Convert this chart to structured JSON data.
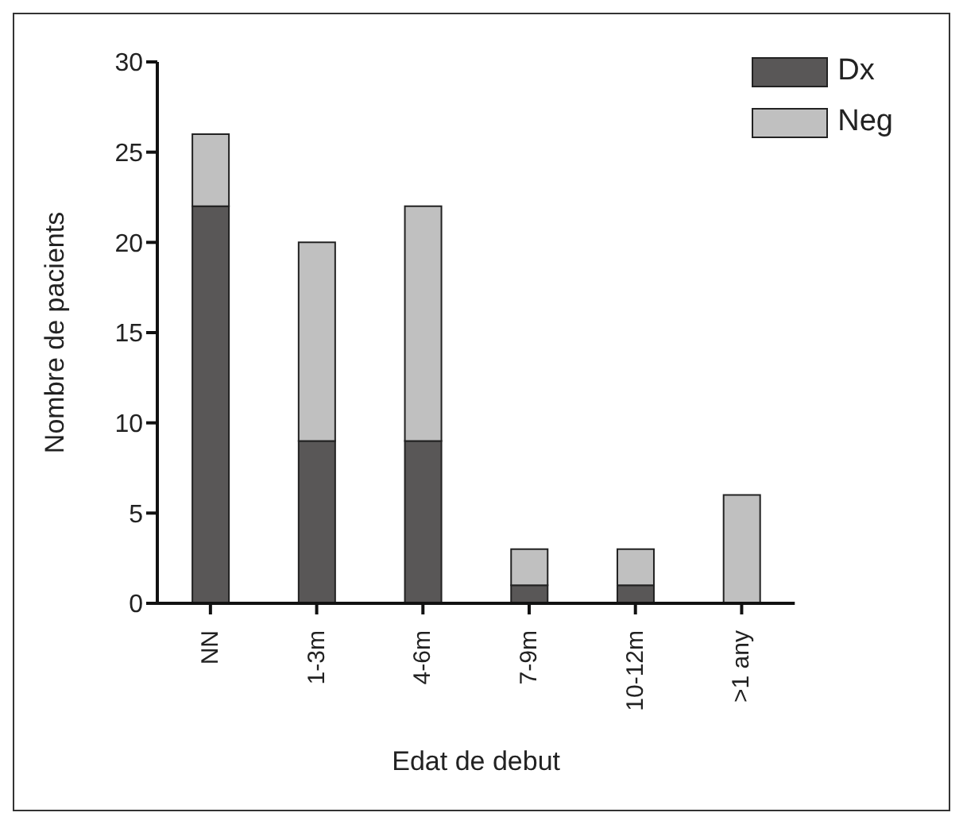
{
  "chart_data": {
    "type": "bar",
    "stacked": true,
    "xlabel": "Edat de debut",
    "ylabel": "Nombre de pacients",
    "categories": [
      "NN",
      "1-3m",
      "4-6m",
      "7-9m",
      "10-12m",
      ">1 any"
    ],
    "series": [
      {
        "name": "Dx",
        "color": "#595757",
        "values": [
          22,
          9,
          9,
          1,
          1,
          0
        ]
      },
      {
        "name": "Neg",
        "color": "#c0c0c0",
        "values": [
          4,
          11,
          13,
          2,
          2,
          6
        ]
      }
    ],
    "ylim": [
      0,
      30
    ],
    "yticks": [
      0,
      5,
      10,
      15,
      20,
      25,
      30
    ],
    "grid": false,
    "legend": "top right"
  }
}
